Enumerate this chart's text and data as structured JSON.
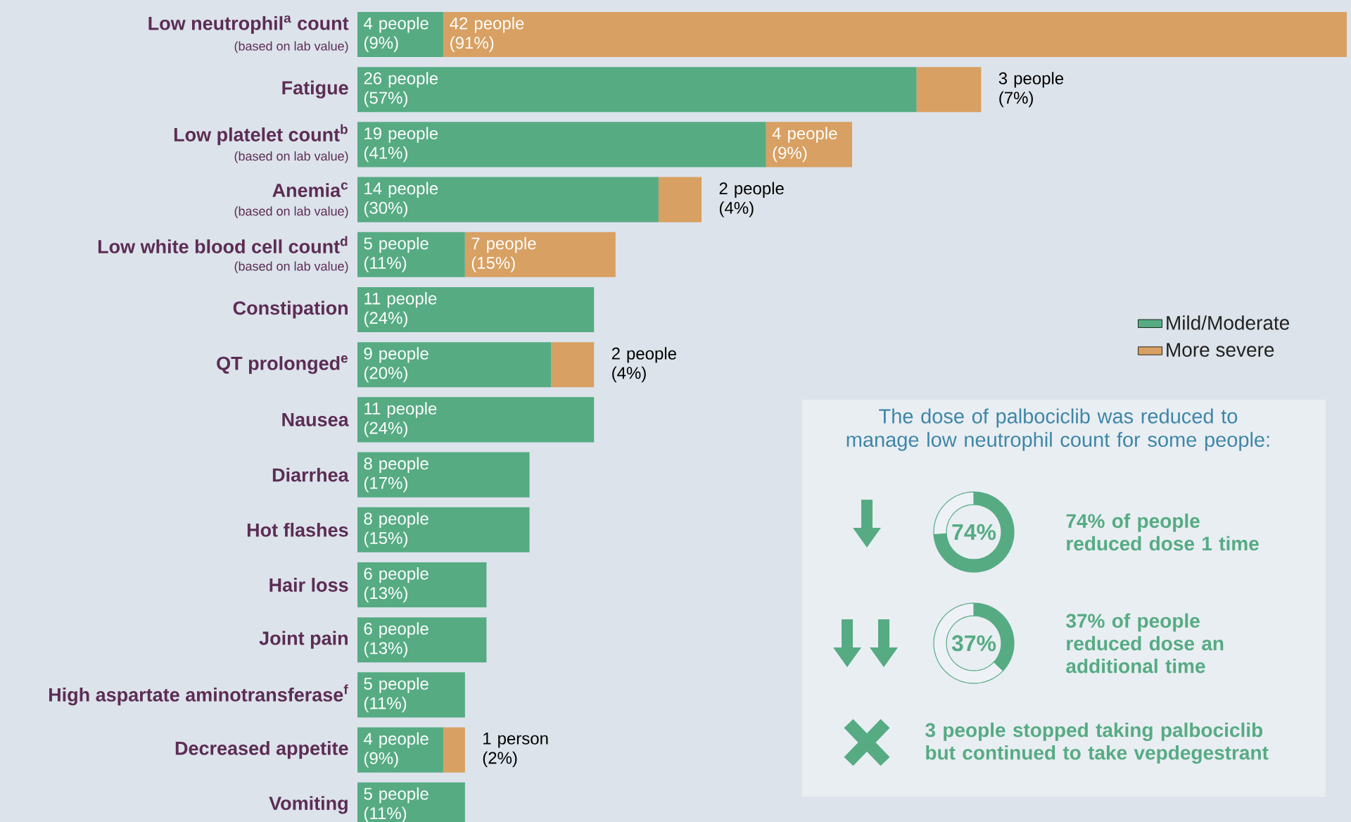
{
  "chart_data": [
    {
      "type": "bar",
      "orientation": "horizontal",
      "stacked": true,
      "legend": "right",
      "tick_labels": "y",
      "categories": [
        "Low neutrophil$^{a}$ count",
        "Fatigue",
        "Low platelet count$^{b}$",
        "Anemia$^{c}$",
        "Low white blood cell count$^{d}$",
        "Constipation",
        "QT prolonged$^{e}$",
        "Nausea",
        "Diarrhea",
        "Hot flashes",
        "Hair loss",
        "Joint pain",
        "High aspartate aminotransferase$^{f}$",
        "Decreased appetite",
        "Vomiting"
      ],
      "series": [
        {
          "name": "Mild/Moderate",
          "color": "#56ab83",
          "values": [
            4,
            26,
            19,
            14,
            5,
            11,
            9,
            11,
            8,
            8,
            6,
            6,
            5,
            4,
            5
          ],
          "value_labels": [
            "4 people (9%)",
            "26 people (57%)",
            "19 people (41%)",
            "14 people (30%)",
            "5 people (11%)",
            "11 people (24%)",
            "9 people (20%)",
            "11 people (24%)",
            "8 people (17%)",
            "8 people (15%)",
            "6 people (13%)",
            "6 people (13%)",
            "5 people (11%)",
            "4 people (9%)",
            "5 people (11%)"
          ]
        },
        {
          "name": "More severe",
          "color": "#d8a062",
          "values": [
            42,
            3,
            4,
            2,
            7,
            null,
            2,
            null,
            null,
            null,
            null,
            null,
            null,
            1,
            null
          ],
          "value_labels": [
            "42 people (91%)",
            "3 people (7%)",
            "4 people (9%)",
            "2 people (4%)",
            "7 people (15%)",
            null,
            "2 people (4%)",
            null,
            null,
            null,
            null,
            null,
            null,
            "1 person (2%)",
            null
          ]
        }
      ],
      "annotations": [
        "(based on lab value)",
        "(based on lab value)",
        "(based on lab value)",
        "(based on lab value)"
      ]
    },
    {
      "type": "donut",
      "title": "The dose of palbociclib was reduced to manage low neutrophil count for some people:",
      "categories": [
        null,
        null
      ],
      "values": [
        74,
        26
      ],
      "colors": [
        "#56ab83",
        "#eef2f6"
      ],
      "annotations": [
        "74%",
        "74% of people reduced dose 1 time"
      ]
    },
    {
      "type": "donut",
      "categories": [
        null,
        null
      ],
      "values": [
        37,
        63
      ],
      "colors": [
        "#56ab83",
        "#eef2f6"
      ],
      "annotations": [
        "37%",
        "37% of people reduced dose an additional time"
      ]
    },
    {
      "type": "other",
      "annotations": [
        "3 people stopped taking palbociclib but continued to take vepdegestrant"
      ]
    }
  ]
}
